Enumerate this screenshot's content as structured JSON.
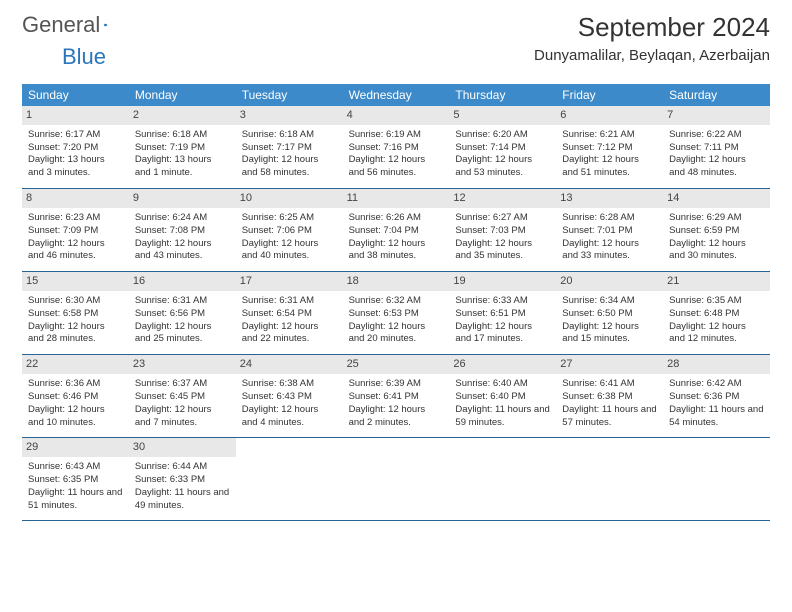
{
  "brand": {
    "name1": "General",
    "name2": "Blue"
  },
  "title": "September 2024",
  "location": "Dunyamalilar, Beylaqan, Azerbaijan",
  "colors": {
    "header_bg": "#3c8ac9",
    "header_text": "#ffffff",
    "daynum_bg": "#e8e8e8",
    "border": "#2a6496",
    "brand_blue": "#2a77bb"
  },
  "day_labels": [
    "Sunday",
    "Monday",
    "Tuesday",
    "Wednesday",
    "Thursday",
    "Friday",
    "Saturday"
  ],
  "weeks": [
    [
      {
        "n": "1",
        "sunrise": "Sunrise: 6:17 AM",
        "sunset": "Sunset: 7:20 PM",
        "daylight": "Daylight: 13 hours and 3 minutes."
      },
      {
        "n": "2",
        "sunrise": "Sunrise: 6:18 AM",
        "sunset": "Sunset: 7:19 PM",
        "daylight": "Daylight: 13 hours and 1 minute."
      },
      {
        "n": "3",
        "sunrise": "Sunrise: 6:18 AM",
        "sunset": "Sunset: 7:17 PM",
        "daylight": "Daylight: 12 hours and 58 minutes."
      },
      {
        "n": "4",
        "sunrise": "Sunrise: 6:19 AM",
        "sunset": "Sunset: 7:16 PM",
        "daylight": "Daylight: 12 hours and 56 minutes."
      },
      {
        "n": "5",
        "sunrise": "Sunrise: 6:20 AM",
        "sunset": "Sunset: 7:14 PM",
        "daylight": "Daylight: 12 hours and 53 minutes."
      },
      {
        "n": "6",
        "sunrise": "Sunrise: 6:21 AM",
        "sunset": "Sunset: 7:12 PM",
        "daylight": "Daylight: 12 hours and 51 minutes."
      },
      {
        "n": "7",
        "sunrise": "Sunrise: 6:22 AM",
        "sunset": "Sunset: 7:11 PM",
        "daylight": "Daylight: 12 hours and 48 minutes."
      }
    ],
    [
      {
        "n": "8",
        "sunrise": "Sunrise: 6:23 AM",
        "sunset": "Sunset: 7:09 PM",
        "daylight": "Daylight: 12 hours and 46 minutes."
      },
      {
        "n": "9",
        "sunrise": "Sunrise: 6:24 AM",
        "sunset": "Sunset: 7:08 PM",
        "daylight": "Daylight: 12 hours and 43 minutes."
      },
      {
        "n": "10",
        "sunrise": "Sunrise: 6:25 AM",
        "sunset": "Sunset: 7:06 PM",
        "daylight": "Daylight: 12 hours and 40 minutes."
      },
      {
        "n": "11",
        "sunrise": "Sunrise: 6:26 AM",
        "sunset": "Sunset: 7:04 PM",
        "daylight": "Daylight: 12 hours and 38 minutes."
      },
      {
        "n": "12",
        "sunrise": "Sunrise: 6:27 AM",
        "sunset": "Sunset: 7:03 PM",
        "daylight": "Daylight: 12 hours and 35 minutes."
      },
      {
        "n": "13",
        "sunrise": "Sunrise: 6:28 AM",
        "sunset": "Sunset: 7:01 PM",
        "daylight": "Daylight: 12 hours and 33 minutes."
      },
      {
        "n": "14",
        "sunrise": "Sunrise: 6:29 AM",
        "sunset": "Sunset: 6:59 PM",
        "daylight": "Daylight: 12 hours and 30 minutes."
      }
    ],
    [
      {
        "n": "15",
        "sunrise": "Sunrise: 6:30 AM",
        "sunset": "Sunset: 6:58 PM",
        "daylight": "Daylight: 12 hours and 28 minutes."
      },
      {
        "n": "16",
        "sunrise": "Sunrise: 6:31 AM",
        "sunset": "Sunset: 6:56 PM",
        "daylight": "Daylight: 12 hours and 25 minutes."
      },
      {
        "n": "17",
        "sunrise": "Sunrise: 6:31 AM",
        "sunset": "Sunset: 6:54 PM",
        "daylight": "Daylight: 12 hours and 22 minutes."
      },
      {
        "n": "18",
        "sunrise": "Sunrise: 6:32 AM",
        "sunset": "Sunset: 6:53 PM",
        "daylight": "Daylight: 12 hours and 20 minutes."
      },
      {
        "n": "19",
        "sunrise": "Sunrise: 6:33 AM",
        "sunset": "Sunset: 6:51 PM",
        "daylight": "Daylight: 12 hours and 17 minutes."
      },
      {
        "n": "20",
        "sunrise": "Sunrise: 6:34 AM",
        "sunset": "Sunset: 6:50 PM",
        "daylight": "Daylight: 12 hours and 15 minutes."
      },
      {
        "n": "21",
        "sunrise": "Sunrise: 6:35 AM",
        "sunset": "Sunset: 6:48 PM",
        "daylight": "Daylight: 12 hours and 12 minutes."
      }
    ],
    [
      {
        "n": "22",
        "sunrise": "Sunrise: 6:36 AM",
        "sunset": "Sunset: 6:46 PM",
        "daylight": "Daylight: 12 hours and 10 minutes."
      },
      {
        "n": "23",
        "sunrise": "Sunrise: 6:37 AM",
        "sunset": "Sunset: 6:45 PM",
        "daylight": "Daylight: 12 hours and 7 minutes."
      },
      {
        "n": "24",
        "sunrise": "Sunrise: 6:38 AM",
        "sunset": "Sunset: 6:43 PM",
        "daylight": "Daylight: 12 hours and 4 minutes."
      },
      {
        "n": "25",
        "sunrise": "Sunrise: 6:39 AM",
        "sunset": "Sunset: 6:41 PM",
        "daylight": "Daylight: 12 hours and 2 minutes."
      },
      {
        "n": "26",
        "sunrise": "Sunrise: 6:40 AM",
        "sunset": "Sunset: 6:40 PM",
        "daylight": "Daylight: 11 hours and 59 minutes."
      },
      {
        "n": "27",
        "sunrise": "Sunrise: 6:41 AM",
        "sunset": "Sunset: 6:38 PM",
        "daylight": "Daylight: 11 hours and 57 minutes."
      },
      {
        "n": "28",
        "sunrise": "Sunrise: 6:42 AM",
        "sunset": "Sunset: 6:36 PM",
        "daylight": "Daylight: 11 hours and 54 minutes."
      }
    ],
    [
      {
        "n": "29",
        "sunrise": "Sunrise: 6:43 AM",
        "sunset": "Sunset: 6:35 PM",
        "daylight": "Daylight: 11 hours and 51 minutes."
      },
      {
        "n": "30",
        "sunrise": "Sunrise: 6:44 AM",
        "sunset": "Sunset: 6:33 PM",
        "daylight": "Daylight: 11 hours and 49 minutes."
      },
      null,
      null,
      null,
      null,
      null
    ]
  ]
}
